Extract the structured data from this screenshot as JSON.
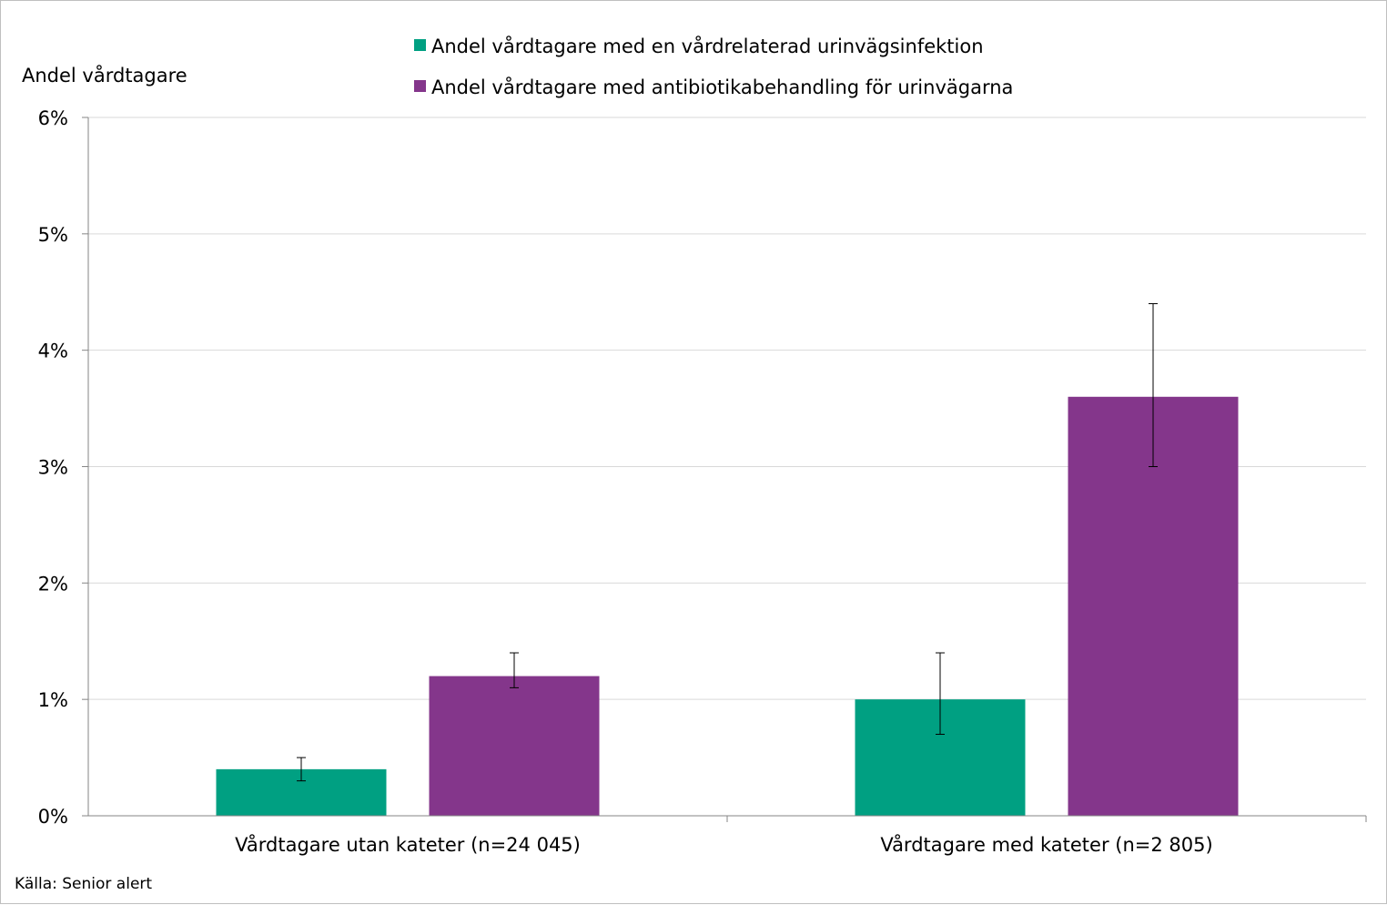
{
  "chart_data": {
    "type": "bar",
    "title": "",
    "ylabel": "Andel vårdtagare",
    "xlabel": "",
    "ylim": [
      0,
      6
    ],
    "yticks": [
      0,
      1,
      2,
      3,
      4,
      5,
      6
    ],
    "ytick_labels": [
      "0%",
      "1%",
      "2%",
      "3%",
      "4%",
      "5%",
      "6%"
    ],
    "categories": [
      "Vårdtagare utan kateter (n=24 045)",
      "Vårdtagare med kateter (n=2 805)"
    ],
    "series": [
      {
        "name": "Andel vårdtagare med en vårdrelaterad urinvägsinfektion",
        "color": "#00a082",
        "values": [
          0.4,
          1.0
        ],
        "error_low": [
          0.3,
          0.7
        ],
        "error_high": [
          0.5,
          1.4
        ]
      },
      {
        "name": "Andel vårdtagare med antibiotikabehandling för urinvägarna",
        "color": "#84368b",
        "values": [
          1.2,
          3.6
        ],
        "error_low": [
          1.1,
          3.0
        ],
        "error_high": [
          1.4,
          4.4
        ]
      }
    ],
    "legend_position": "top",
    "grid": true,
    "source": "Källa: Senior alert"
  }
}
